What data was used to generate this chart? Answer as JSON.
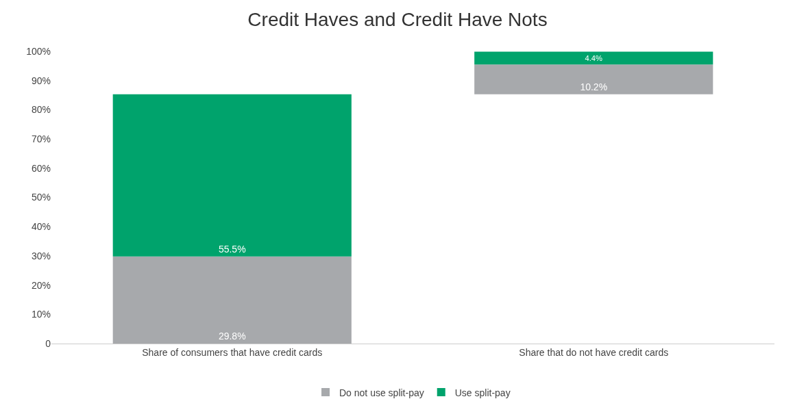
{
  "chart_data": {
    "type": "bar",
    "title": "Credit Haves and Credit Have Nots",
    "categories": [
      "Share of consumers that have credit cards",
      "Share that do not have credit cards"
    ],
    "series": [
      {
        "name": "Do not use split-pay",
        "color": "#a7a9ac",
        "base": [
          0,
          85.3
        ],
        "values": [
          29.8,
          10.2
        ],
        "value_labels": [
          "29.8%",
          "10.2%"
        ]
      },
      {
        "name": "Use split-pay",
        "color": "#00a36c",
        "base": [
          29.8,
          95.5
        ],
        "values": [
          55.5,
          4.4
        ],
        "value_labels": [
          "55.5%",
          "4.4%"
        ]
      }
    ],
    "ylim": [
      0,
      100
    ],
    "yticks": [
      {
        "value": 0,
        "label": "0"
      },
      {
        "value": 10,
        "label": "10%"
      },
      {
        "value": 20,
        "label": "20%"
      },
      {
        "value": 30,
        "label": "30%"
      },
      {
        "value": 40,
        "label": "40%"
      },
      {
        "value": 50,
        "label": "50%"
      },
      {
        "value": 60,
        "label": "60%"
      },
      {
        "value": 70,
        "label": "70%"
      },
      {
        "value": 80,
        "label": "80%"
      },
      {
        "value": 90,
        "label": "90%"
      },
      {
        "value": 100,
        "label": "100%"
      }
    ],
    "legend": "bottom"
  }
}
